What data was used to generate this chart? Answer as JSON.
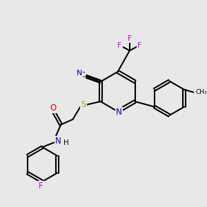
{
  "bg_color": "#e8e8e8",
  "bond_color": "#000000",
  "bond_width": 1.5,
  "colors": {
    "C": "#000000",
    "N": "#0000cc",
    "O": "#cc0000",
    "F": "#cc00cc",
    "S": "#aaaa00"
  },
  "font_size": 7.5
}
